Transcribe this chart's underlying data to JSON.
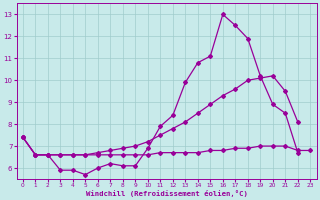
{
  "xlabel": "Windchill (Refroidissement éolien,°C)",
  "bg_color": "#c8eaea",
  "grid_color": "#a0cccc",
  "line_color": "#990099",
  "xlim": [
    -0.5,
    23.5
  ],
  "ylim": [
    5.5,
    13.5
  ],
  "xticks": [
    0,
    1,
    2,
    3,
    4,
    5,
    6,
    7,
    8,
    9,
    10,
    11,
    12,
    13,
    14,
    15,
    16,
    17,
    18,
    19,
    20,
    21,
    22,
    23
  ],
  "yticks": [
    6,
    7,
    8,
    9,
    10,
    11,
    12,
    13
  ],
  "series1_x": [
    0,
    1,
    2,
    3,
    4,
    5,
    6,
    7,
    8,
    9,
    10,
    11,
    12,
    13,
    14,
    15,
    16,
    17,
    18,
    19,
    20,
    21,
    22
  ],
  "series1_y": [
    7.4,
    6.6,
    6.6,
    5.9,
    5.9,
    5.7,
    6.0,
    6.2,
    6.1,
    6.1,
    6.9,
    7.9,
    8.4,
    9.9,
    10.8,
    11.1,
    13.0,
    12.5,
    11.9,
    10.2,
    8.9,
    8.5,
    6.7
  ],
  "series2_x": [
    0,
    1,
    2,
    3,
    4,
    5,
    6,
    7,
    8,
    9,
    10,
    11,
    12,
    13,
    14,
    15,
    16,
    17,
    18,
    19,
    20,
    21,
    22
  ],
  "series2_y": [
    7.4,
    6.6,
    6.6,
    6.6,
    6.6,
    6.6,
    6.7,
    6.8,
    6.9,
    7.0,
    7.2,
    7.5,
    7.8,
    8.1,
    8.5,
    8.9,
    9.3,
    9.6,
    10.0,
    10.1,
    10.2,
    9.5,
    8.1
  ],
  "series3_x": [
    0,
    1,
    2,
    3,
    4,
    5,
    6,
    7,
    8,
    9,
    10,
    11,
    12,
    13,
    14,
    15,
    16,
    17,
    18,
    19,
    20,
    21,
    22,
    23
  ],
  "series3_y": [
    7.4,
    6.6,
    6.6,
    6.6,
    6.6,
    6.6,
    6.6,
    6.6,
    6.6,
    6.6,
    6.6,
    6.7,
    6.7,
    6.7,
    6.7,
    6.8,
    6.8,
    6.9,
    6.9,
    7.0,
    7.0,
    7.0,
    6.8,
    6.8
  ]
}
